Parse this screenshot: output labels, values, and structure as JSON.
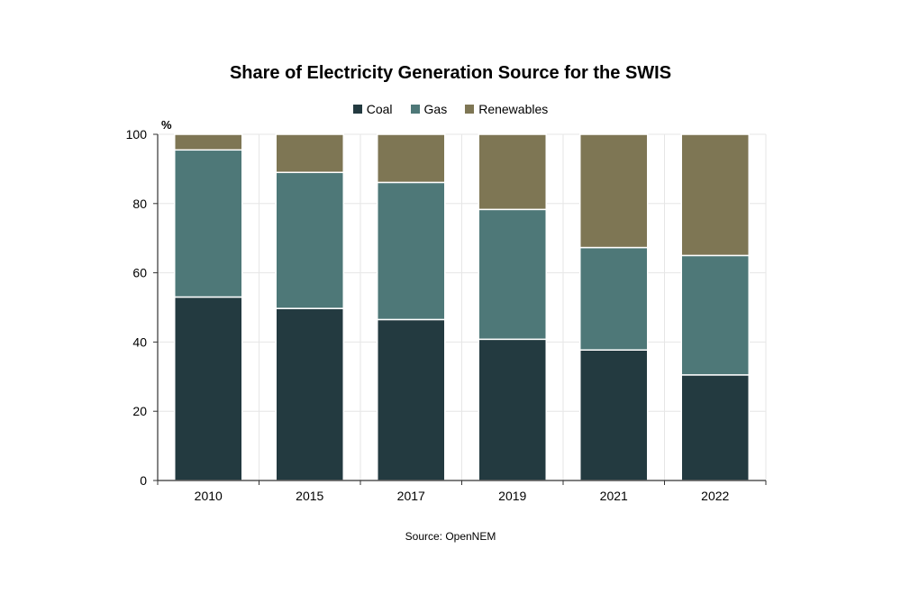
{
  "chart_data": {
    "type": "bar",
    "stacked": true,
    "title": "Share of Electricity Generation Source for the SWIS",
    "ylabel": "%",
    "xlabel": "",
    "ylim": [
      0,
      100
    ],
    "yticks": [
      0,
      20,
      40,
      60,
      80,
      100
    ],
    "grid": true,
    "legend_position": "top-center",
    "categories": [
      "2010",
      "2015",
      "2017",
      "2019",
      "2021",
      "2022"
    ],
    "series": [
      {
        "name": "Coal",
        "color": "#233a40",
        "values": [
          53,
          49.7,
          46.5,
          40.8,
          37.7,
          30.5
        ]
      },
      {
        "name": "Gas",
        "color": "#4e7878",
        "values": [
          42.5,
          39.3,
          39.6,
          37.5,
          29.6,
          34.5
        ]
      },
      {
        "name": "Renewables",
        "color": "#7e7654",
        "values": [
          4.5,
          11,
          13.9,
          21.7,
          32.7,
          35
        ]
      }
    ],
    "source": "Source: OpenNEM"
  }
}
